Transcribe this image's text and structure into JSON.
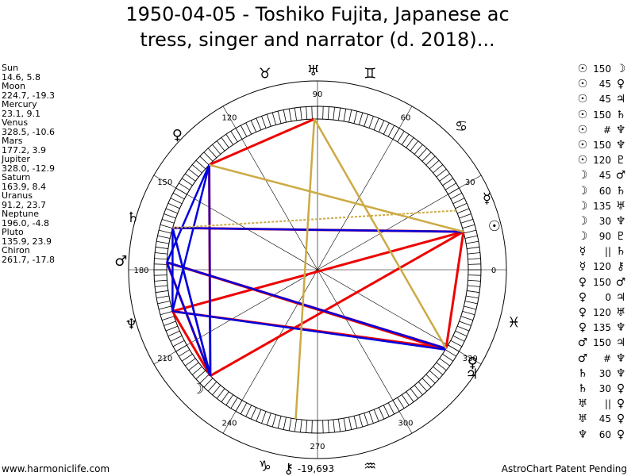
{
  "title_line1": "1950-04-05 - Toshiko Fujita, Japanese ac",
  "title_line2": "tress, singer and narrator (d. 2018)...",
  "planets": [
    {
      "name": "Sun",
      "coords": "14.6, 5.8"
    },
    {
      "name": "Moon",
      "coords": "224.7, -19.3"
    },
    {
      "name": "Mercury",
      "coords": "23.1, 9.1"
    },
    {
      "name": "Venus",
      "coords": "328.5, -10.6"
    },
    {
      "name": "Mars",
      "coords": "177.2, 3.9"
    },
    {
      "name": "Jupiter",
      "coords": "328.0, -12.9"
    },
    {
      "name": "Saturn",
      "coords": "163.9, 8.4"
    },
    {
      "name": "Uranus",
      "coords": "91.2, 23.7"
    },
    {
      "name": "Neptune",
      "coords": "196.0, -4.8"
    },
    {
      "name": "Pluto",
      "coords": "135.9, 23.9"
    },
    {
      "name": "Chiron",
      "coords": "261.7, -17.8"
    }
  ],
  "aspects": [
    {
      "p1": "☉",
      "orb": "150",
      "p2": "☽"
    },
    {
      "p1": "☉",
      "orb": "45",
      "p2": "♀"
    },
    {
      "p1": "☉",
      "orb": "45",
      "p2": "♃"
    },
    {
      "p1": "☉",
      "orb": "150",
      "p2": "♄"
    },
    {
      "p1": "☉",
      "orb": "#",
      "p2": "♆"
    },
    {
      "p1": "☉",
      "orb": "150",
      "p2": "♆"
    },
    {
      "p1": "☉",
      "orb": "120",
      "p2": "♇"
    },
    {
      "p1": "☽",
      "orb": "45",
      "p2": "♂"
    },
    {
      "p1": "☽",
      "orb": "60",
      "p2": "♄"
    },
    {
      "p1": "☽",
      "orb": "135",
      "p2": "♅"
    },
    {
      "p1": "☽",
      "orb": "30",
      "p2": "♆"
    },
    {
      "p1": "☽",
      "orb": "90",
      "p2": "♇"
    },
    {
      "p1": "☿",
      "orb": "||",
      "p2": "♄"
    },
    {
      "p1": "☿",
      "orb": "120",
      "p2": "⚷"
    },
    {
      "p1": "♀",
      "orb": "150",
      "p2": "♂"
    },
    {
      "p1": "♀",
      "orb": "0",
      "p2": "♃"
    },
    {
      "p1": "♀",
      "orb": "120",
      "p2": "♅"
    },
    {
      "p1": "♀",
      "orb": "135",
      "p2": "♆"
    },
    {
      "p1": "♂",
      "orb": "150",
      "p2": "♃"
    },
    {
      "p1": "♂",
      "orb": "#",
      "p2": "♆"
    },
    {
      "p1": "♄",
      "orb": "30",
      "p2": "♆"
    },
    {
      "p1": "♄",
      "orb": "30",
      "p2": "♀"
    },
    {
      "p1": "♅",
      "orb": "||",
      "p2": "♀"
    },
    {
      "p1": "♅",
      "orb": "45",
      "p2": "♀"
    },
    {
      "p1": "♆",
      "orb": "60",
      "p2": "♀"
    }
  ],
  "wheel_degree_labels": [
    "0",
    "30",
    "60",
    "90",
    "120",
    "150",
    "180",
    "210",
    "240",
    "270",
    "300",
    "330"
  ],
  "wheel_bottom_value": "-19,693",
  "footer_left": "www.harmoniclife.com",
  "footer_right": "AstroChart Patent Pending",
  "colors": {
    "red": "#ee0000",
    "blue": "#0000dd",
    "gold": "#ccaa44"
  }
}
